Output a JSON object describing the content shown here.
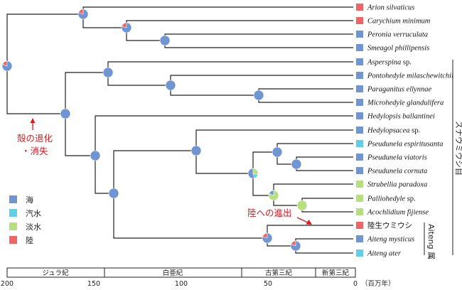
{
  "colors": {
    "marine": "#6f95d2",
    "brackish": "#5fd0e8",
    "freshwater": "#b7df7f",
    "terrestrial": "#ef6464",
    "annotation": "#d71920"
  },
  "taxa": [
    {
      "name": "Arion silvaticus",
      "habitat": "terrestrial",
      "italic": true
    },
    {
      "name": "Carychium minimum",
      "habitat": "terrestrial",
      "italic": true
    },
    {
      "name": "Peronia verruculata",
      "habitat": "marine",
      "italic": true
    },
    {
      "name": "Smeagol phillipensis",
      "habitat": "marine",
      "italic": true
    },
    {
      "name": "Asperspina",
      "suffix": " sp.",
      "habitat": "marine",
      "italic": true
    },
    {
      "name": "Pontohedyle milaschewitchii",
      "habitat": "marine",
      "italic": true
    },
    {
      "name": "Paraganitus ellynnae",
      "habitat": "marine",
      "italic": true
    },
    {
      "name": "Microhedyle glandulifera",
      "habitat": "marine",
      "italic": true
    },
    {
      "name": "Hedylopsis ballantinei",
      "habitat": "marine",
      "italic": true
    },
    {
      "name": "Hedylopsacea",
      "suffix": " sp.",
      "habitat": "marine",
      "italic": true
    },
    {
      "name": "Pseudunela espiritusanta",
      "habitat": "brackish",
      "italic": true
    },
    {
      "name": "Pseudunela viatoris",
      "habitat": "marine",
      "italic": true
    },
    {
      "name": "Pseudunela cornuta",
      "habitat": "marine",
      "italic": true
    },
    {
      "name": "Strubellia paradoxa",
      "habitat": "freshwater",
      "italic": true
    },
    {
      "name": "Palliohedyle",
      "suffix": " sp.",
      "habitat": "freshwater",
      "italic": true
    },
    {
      "name": "Acochlidium fijiense",
      "habitat": "freshwater",
      "italic": true
    },
    {
      "name": "陸生ウミウシ",
      "habitat": "terrestrial",
      "italic": false
    },
    {
      "name": "Aiteng mysticus",
      "habitat": "marine",
      "italic": true
    },
    {
      "name": "Aiteng ater",
      "habitat": "brackish",
      "italic": true
    }
  ],
  "legend": [
    {
      "label": "海",
      "habitat": "marine"
    },
    {
      "label": "汽水",
      "habitat": "brackish"
    },
    {
      "label": "淡水",
      "habitat": "freshwater"
    },
    {
      "label": "陸",
      "habitat": "terrestrial"
    }
  ],
  "annotations": {
    "shell_loss_line1": "殻の退化",
    "shell_loss_line2": "・消失",
    "land_advance": "陸への進出"
  },
  "groups": {
    "sunaumiushi": "スナウミウシ目",
    "aiteng": "Aiteng 属"
  },
  "timescale": {
    "periods": [
      "ジュラ紀",
      "白亜紀",
      "古第三紀",
      "新第三紀"
    ],
    "ticks": [
      200,
      150,
      100,
      50,
      0
    ],
    "unit": "（百万年）"
  }
}
